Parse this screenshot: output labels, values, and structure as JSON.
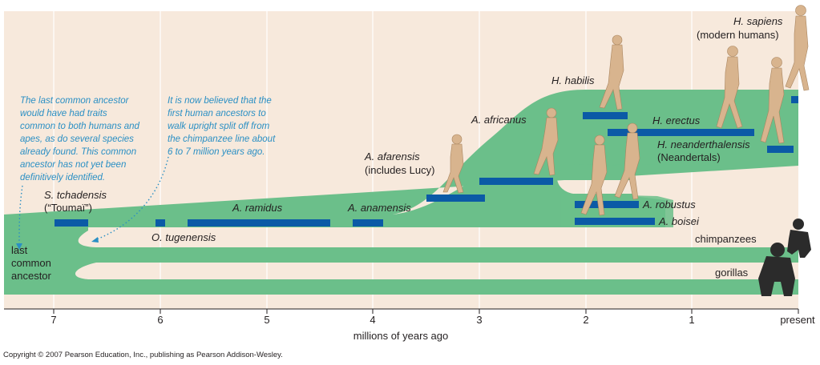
{
  "colors": {
    "background": "#f7e9dc",
    "grid": "#ffffff",
    "branch": "#6bbf8a",
    "bar": "#0b5aa6",
    "note": "#2a8fc4",
    "figure": "#d8b48e",
    "ape": "#2b2b2b"
  },
  "axis": {
    "ticks": [
      "7",
      "6",
      "5",
      "4",
      "3",
      "2",
      "1",
      "present"
    ],
    "title": "millions of years ago"
  },
  "species": {
    "tchadensis_name": "S. tchadensis",
    "tchadensis_common": "(“Toumaï”)",
    "tugenensis": "O. tugenensis",
    "ramidus": "A. ramidus",
    "anamensis": "A. anamensis",
    "afarensis_name": "A. afarensis",
    "afarensis_common": "(includes Lucy)",
    "africanus": "A. africanus",
    "habilis": "H. habilis",
    "erectus": "H. erectus",
    "neanderthalensis_name": "H. neanderthalensis",
    "neanderthalensis_common": "(Neandertals)",
    "sapiens_name": "H. sapiens",
    "sapiens_common": "(modern humans)",
    "robustus": "A. robustus",
    "boisei": "A. boisei",
    "chimpanzees": "chimpanzees",
    "gorillas": "gorillas",
    "lca_line1": "last",
    "lca_line2": "common",
    "lca_line3": "ancestor"
  },
  "notes": {
    "lca": [
      "The last common ancestor",
      "would have had traits",
      "common to both humans and",
      "apes, as do several species",
      "already found. This common",
      "ancestor has not yet been",
      "definitively identified."
    ],
    "upright": [
      "It is now believed that the",
      "first human ancestors to",
      "walk upright split off from",
      "the chimpanzee line about",
      "6 to 7 million years ago."
    ]
  },
  "copyright": "Copyright © 2007 Pearson Education, Inc., publishing as Pearson Addison-Wesley."
}
